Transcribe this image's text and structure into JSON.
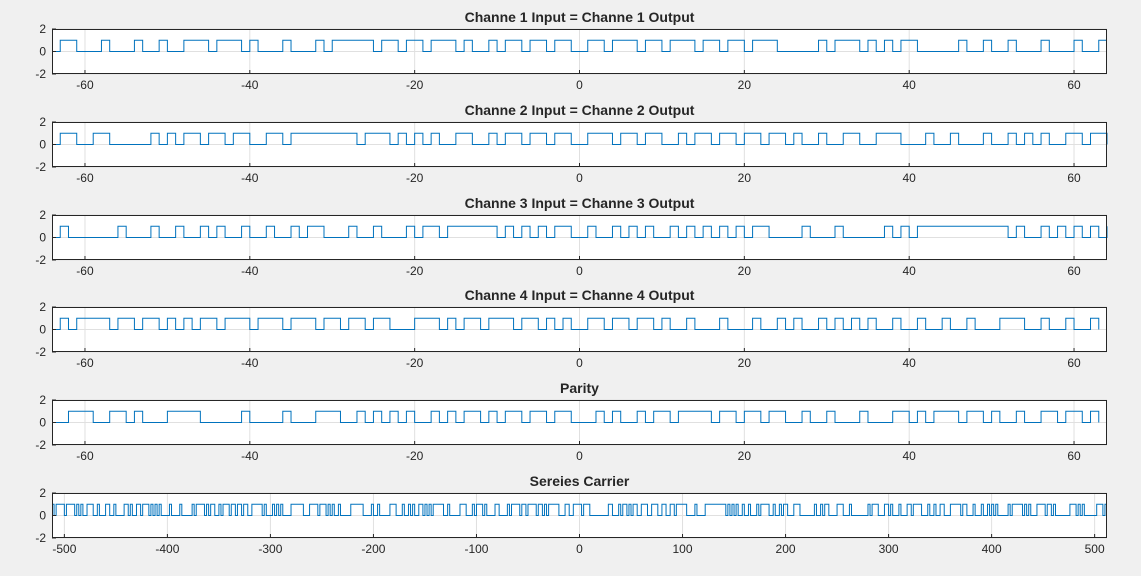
{
  "colors": {
    "background": "#f0f0f0",
    "axes": "#ffffff",
    "line": "#0072bd",
    "grid": "#e0e0e0",
    "text": "#262626"
  },
  "chart_data": [
    {
      "type": "line",
      "step": true,
      "title": "Channe 1 Input = Channe 1 Output",
      "xlim": [
        -64,
        64
      ],
      "ylim": [
        -2,
        2
      ],
      "xticks": [
        -60,
        -40,
        -20,
        0,
        20,
        40,
        60
      ],
      "yticks": [
        -2,
        0,
        2
      ],
      "grid": true,
      "series": [
        {
          "x": [
            -64,
            -63,
            -61,
            -58,
            -57,
            -54,
            -53,
            -51,
            -50,
            -48,
            -45,
            -44,
            -41,
            -40,
            -39,
            -36,
            -35,
            -32,
            -31,
            -30,
            -25,
            -24,
            -22,
            -21,
            -19,
            -18,
            -15,
            -14,
            -13,
            -11,
            -10,
            -9,
            -7,
            -6,
            -4,
            -3,
            -1,
            1,
            3,
            4,
            7,
            8,
            10,
            11,
            14,
            15,
            17,
            18,
            20,
            21,
            24,
            29,
            30,
            31,
            34,
            35,
            36,
            37,
            38,
            39,
            41,
            46,
            47,
            49,
            50,
            52,
            53,
            56,
            57,
            60,
            61,
            63,
            64
          ],
          "y": [
            0,
            1,
            0,
            1,
            0,
            1,
            0,
            1,
            0,
            1,
            0,
            1,
            0,
            1,
            0,
            1,
            0,
            1,
            0,
            1,
            0,
            1,
            0,
            1,
            0,
            1,
            0,
            1,
            0,
            1,
            0,
            1,
            0,
            1,
            0,
            1,
            0,
            1,
            0,
            1,
            0,
            1,
            0,
            1,
            0,
            1,
            0,
            1,
            0,
            1,
            0,
            1,
            0,
            1,
            0,
            1,
            0,
            1,
            0,
            1,
            0,
            1,
            0,
            1,
            0,
            1,
            0,
            1,
            0,
            1,
            0,
            1,
            1
          ]
        }
      ]
    },
    {
      "type": "line",
      "step": true,
      "title": "Channe 2 Input = Channe 2 Output",
      "xlim": [
        -64,
        64
      ],
      "ylim": [
        -2,
        2
      ],
      "xticks": [
        -60,
        -40,
        -20,
        0,
        20,
        40,
        60
      ],
      "yticks": [
        -2,
        0,
        2
      ],
      "grid": true,
      "series": [
        {
          "x": [
            -64,
            -63,
            -61,
            -59,
            -57,
            -52,
            -51,
            -50,
            -49,
            -48,
            -46,
            -45,
            -43,
            -42,
            -40,
            -38,
            -36,
            -35,
            -27,
            -26,
            -23,
            -22,
            -21,
            -20,
            -19,
            -18,
            -17,
            -15,
            -13,
            -11,
            -10,
            -9,
            -7,
            -6,
            -4,
            -3,
            -1,
            1,
            4,
            5,
            7,
            8,
            10,
            12,
            13,
            14,
            16,
            17,
            19,
            20,
            22,
            23,
            25,
            26,
            27,
            29,
            30,
            32,
            34,
            36,
            39,
            42,
            43,
            45,
            46,
            49,
            50,
            52,
            53,
            54,
            55,
            56,
            57,
            59,
            61,
            62,
            64
          ],
          "y": [
            0,
            1,
            0,
            1,
            0,
            1,
            0,
            1,
            0,
            1,
            0,
            1,
            0,
            1,
            0,
            1,
            0,
            1,
            0,
            1,
            0,
            1,
            0,
            1,
            0,
            1,
            0,
            1,
            0,
            1,
            0,
            1,
            0,
            1,
            0,
            1,
            0,
            1,
            0,
            1,
            0,
            1,
            0,
            1,
            0,
            1,
            0,
            1,
            0,
            1,
            0,
            1,
            0,
            1,
            0,
            1,
            0,
            1,
            0,
            1,
            0,
            1,
            0,
            1,
            0,
            1,
            0,
            1,
            0,
            1,
            0,
            1,
            0,
            1,
            0,
            1,
            0
          ]
        }
      ]
    },
    {
      "type": "line",
      "step": true,
      "title": "Channe 3 Input = Channe 3 Output",
      "xlim": [
        -64,
        64
      ],
      "ylim": [
        -2,
        2
      ],
      "xticks": [
        -60,
        -40,
        -20,
        0,
        20,
        40,
        60
      ],
      "yticks": [
        -2,
        0,
        2
      ],
      "grid": true,
      "series": [
        {
          "x": [
            -64,
            -63,
            -62,
            -56,
            -55,
            -52,
            -51,
            -49,
            -48,
            -46,
            -45,
            -44,
            -43,
            -41,
            -40,
            -38,
            -37,
            -35,
            -34,
            -33,
            -31,
            -28,
            -27,
            -25,
            -24,
            -21,
            -20,
            -19,
            -17,
            -16,
            -10,
            -9,
            -8,
            -7,
            -6,
            -5,
            -4,
            -3,
            -1,
            1,
            2,
            4,
            5,
            6,
            7,
            8,
            9,
            11,
            12,
            13,
            14,
            15,
            16,
            17,
            18,
            19,
            20,
            21,
            23,
            27,
            28,
            31,
            32,
            37,
            38,
            39,
            40,
            41,
            52,
            53,
            54,
            56,
            57,
            58,
            59,
            60,
            61,
            62,
            63,
            64
          ],
          "y": [
            0,
            1,
            0,
            1,
            0,
            1,
            0,
            1,
            0,
            1,
            0,
            1,
            0,
            1,
            0,
            1,
            0,
            1,
            0,
            1,
            0,
            1,
            0,
            1,
            0,
            1,
            0,
            1,
            0,
            1,
            0,
            1,
            0,
            1,
            0,
            1,
            0,
            1,
            0,
            1,
            0,
            1,
            0,
            1,
            0,
            1,
            0,
            1,
            0,
            1,
            0,
            1,
            0,
            1,
            0,
            1,
            0,
            1,
            0,
            1,
            0,
            1,
            0,
            1,
            0,
            1,
            0,
            1,
            0,
            1,
            0,
            1,
            0,
            1,
            0,
            1,
            0,
            1,
            0,
            1
          ]
        }
      ]
    },
    {
      "type": "line",
      "step": true,
      "title": "Channe 4 Input = Channe 4 Output",
      "xlim": [
        -64,
        64
      ],
      "ylim": [
        -2,
        2
      ],
      "xticks": [
        -60,
        -40,
        -20,
        0,
        20,
        40,
        60
      ],
      "yticks": [
        -2,
        0,
        2
      ],
      "grid": true,
      "series": [
        {
          "x": [
            -64,
            -63,
            -62,
            -61,
            -57,
            -56,
            -54,
            -53,
            -51,
            -50,
            -49,
            -48,
            -47,
            -46,
            -44,
            -43,
            -40,
            -39,
            -36,
            -35,
            -32,
            -31,
            -29,
            -28,
            -26,
            -25,
            -23,
            -20,
            -17,
            -16,
            -15,
            -14,
            -12,
            -11,
            -8,
            -7,
            -5,
            -4,
            -3,
            -2,
            -1,
            1,
            3,
            4,
            6,
            7,
            9,
            10,
            11,
            13,
            14,
            17,
            18,
            21,
            22,
            24,
            25,
            26,
            27,
            29,
            30,
            31,
            32,
            33,
            34,
            35,
            36,
            38,
            39,
            41,
            42,
            44,
            45,
            47,
            48,
            51,
            54,
            56,
            57,
            59,
            60,
            62,
            63
          ],
          "y": [
            0,
            1,
            0,
            1,
            0,
            1,
            0,
            1,
            0,
            1,
            0,
            1,
            0,
            1,
            0,
            1,
            0,
            1,
            0,
            1,
            0,
            1,
            0,
            1,
            0,
            1,
            0,
            1,
            0,
            1,
            0,
            1,
            0,
            1,
            0,
            1,
            0,
            1,
            0,
            1,
            0,
            1,
            0,
            1,
            0,
            1,
            0,
            1,
            0,
            1,
            0,
            1,
            0,
            1,
            0,
            1,
            0,
            1,
            0,
            1,
            0,
            1,
            0,
            1,
            0,
            1,
            0,
            1,
            0,
            1,
            0,
            1,
            0,
            1,
            0,
            1,
            0,
            1,
            0,
            1,
            0,
            1,
            0
          ]
        }
      ]
    },
    {
      "type": "line",
      "step": true,
      "title": "Parity",
      "xlim": [
        -64,
        64
      ],
      "ylim": [
        -2,
        2
      ],
      "xticks": [
        -60,
        -40,
        -20,
        0,
        20,
        40,
        60
      ],
      "yticks": [
        -2,
        0,
        2
      ],
      "grid": true,
      "series": [
        {
          "x": [
            -64,
            -62,
            -59,
            -57,
            -55,
            -54,
            -53,
            -50,
            -46,
            -41,
            -40,
            -36,
            -35,
            -32,
            -29,
            -27,
            -26,
            -25,
            -24,
            -23,
            -22,
            -21,
            -20,
            -18,
            -17,
            -16,
            -15,
            -14,
            -12,
            -11,
            -10,
            -9,
            -7,
            -6,
            -4,
            -3,
            -1,
            2,
            3,
            4,
            5,
            7,
            8,
            9,
            11,
            12,
            16,
            17,
            19,
            20,
            22,
            23,
            25,
            27,
            28,
            30,
            31,
            34,
            35,
            38,
            40,
            41,
            42,
            43,
            46,
            47,
            49,
            50,
            51,
            53,
            54,
            56,
            58,
            59,
            61,
            62,
            63
          ],
          "y": [
            0,
            1,
            0,
            1,
            0,
            1,
            0,
            1,
            0,
            1,
            0,
            1,
            0,
            1,
            0,
            1,
            0,
            1,
            0,
            1,
            0,
            1,
            0,
            1,
            0,
            1,
            0,
            1,
            0,
            1,
            0,
            1,
            0,
            1,
            0,
            1,
            0,
            1,
            0,
            1,
            0,
            1,
            0,
            1,
            0,
            1,
            0,
            1,
            0,
            1,
            0,
            1,
            0,
            1,
            0,
            1,
            0,
            1,
            0,
            1,
            0,
            1,
            0,
            1,
            0,
            1,
            0,
            1,
            0,
            1,
            0,
            1,
            0,
            1,
            0,
            1,
            0
          ]
        }
      ]
    },
    {
      "type": "line",
      "step": true,
      "title": "Sereies Carrier",
      "xlim": [
        -512,
        512
      ],
      "ylim": [
        -2,
        2
      ],
      "xticks": [
        -500,
        -400,
        -300,
        -200,
        -100,
        0,
        100,
        200,
        300,
        400,
        500
      ],
      "yticks": [
        -2,
        0,
        2
      ],
      "grid": true,
      "series": [
        {
          "pattern": "random",
          "x_start": -512,
          "x_end": 512,
          "step": 2,
          "values": [
            0,
            1
          ]
        }
      ]
    }
  ]
}
